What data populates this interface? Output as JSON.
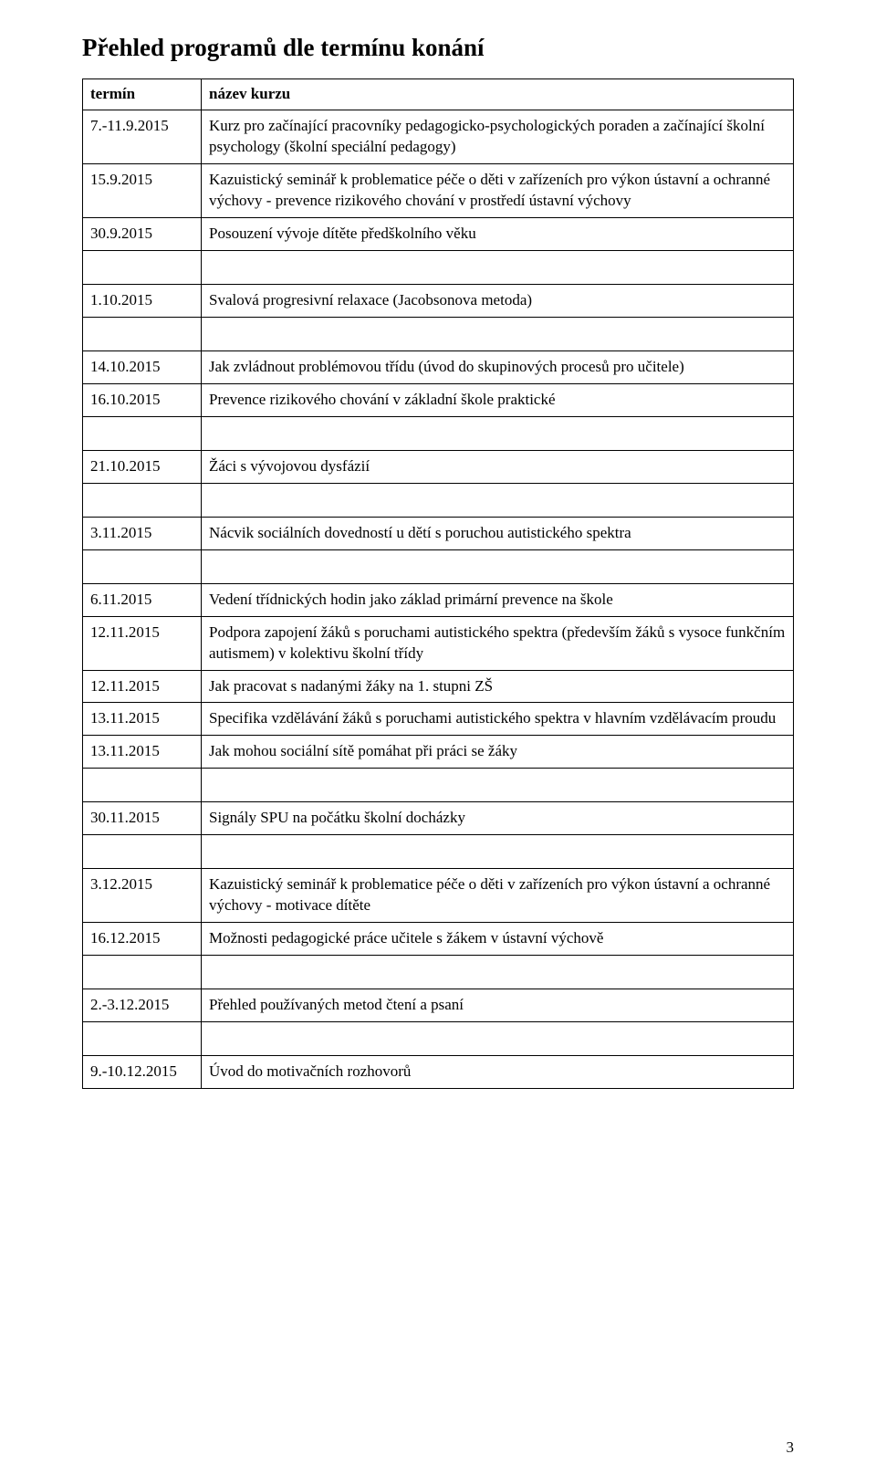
{
  "page_title": "Přehled programů dle termínu konání",
  "page_number": "3",
  "header": {
    "col1": "termín",
    "col2": "název kurzu"
  },
  "groups": [
    {
      "rows": [
        {
          "date": "7.-11.9.2015",
          "text": "Kurz pro začínající pracovníky pedagogicko-psychologických poraden a začínající školní psychology (školní speciální pedagogy)"
        },
        {
          "date": "15.9.2015",
          "text": "Kazuistický seminář k problematice péče o děti v zařízeních pro výkon ústavní a ochranné výchovy - prevence rizikového chování v prostředí ústavní výchovy"
        },
        {
          "date": "30.9.2015",
          "text": "Posouzení vývoje dítěte předškolního věku"
        }
      ]
    },
    {
      "rows": [
        {
          "date": "1.10.2015",
          "text": "Svalová progresivní relaxace (Jacobsonova metoda)"
        }
      ]
    },
    {
      "rows": [
        {
          "date": "14.10.2015",
          "text": "Jak zvládnout problémovou třídu (úvod do skupinových procesů pro učitele)"
        },
        {
          "date": "16.10.2015",
          "text": "Prevence rizikového chování v základní škole praktické"
        }
      ]
    },
    {
      "rows": [
        {
          "date": "21.10.2015",
          "text": "Žáci s vývojovou dysfázií"
        }
      ]
    },
    {
      "rows": [
        {
          "date": "3.11.2015",
          "text": "Nácvik sociálních dovedností u dětí s poruchou autistického spektra"
        }
      ]
    },
    {
      "rows": [
        {
          "date": "6.11.2015",
          "text": "Vedení třídnických hodin jako základ primární prevence na škole"
        },
        {
          "date": "12.11.2015",
          "text": "Podpora zapojení žáků s poruchami autistického spektra (především žáků s vysoce funkčním autismem) v kolektivu školní třídy"
        },
        {
          "date": "12.11.2015",
          "text": "Jak pracovat s nadanými žáky na 1. stupni ZŠ"
        },
        {
          "date": "13.11.2015",
          "text": "Specifika vzdělávání žáků s poruchami autistického spektra v hlavním vzdělávacím proudu"
        },
        {
          "date": "13.11.2015",
          "text": "Jak mohou sociální sítě pomáhat při práci se žáky"
        }
      ]
    },
    {
      "rows": [
        {
          "date": "30.11.2015",
          "text": "Signály SPU na počátku školní docházky"
        }
      ]
    },
    {
      "rows": [
        {
          "date": "3.12.2015",
          "text": " Kazuistický seminář k problematice péče o děti v zařízeních pro výkon ústavní a ochranné výchovy - motivace dítěte"
        },
        {
          "date": "16.12.2015",
          "text": "Možnosti pedagogické práce učitele s žákem v ústavní výchově"
        }
      ]
    },
    {
      "rows": [
        {
          "date": "2.-3.12.2015",
          "text": "Přehled používaných metod čtení a psaní"
        }
      ]
    },
    {
      "rows": [
        {
          "date": "9.-10.12.2015",
          "text": "Úvod do motivačních rozhovorů"
        }
      ]
    }
  ]
}
